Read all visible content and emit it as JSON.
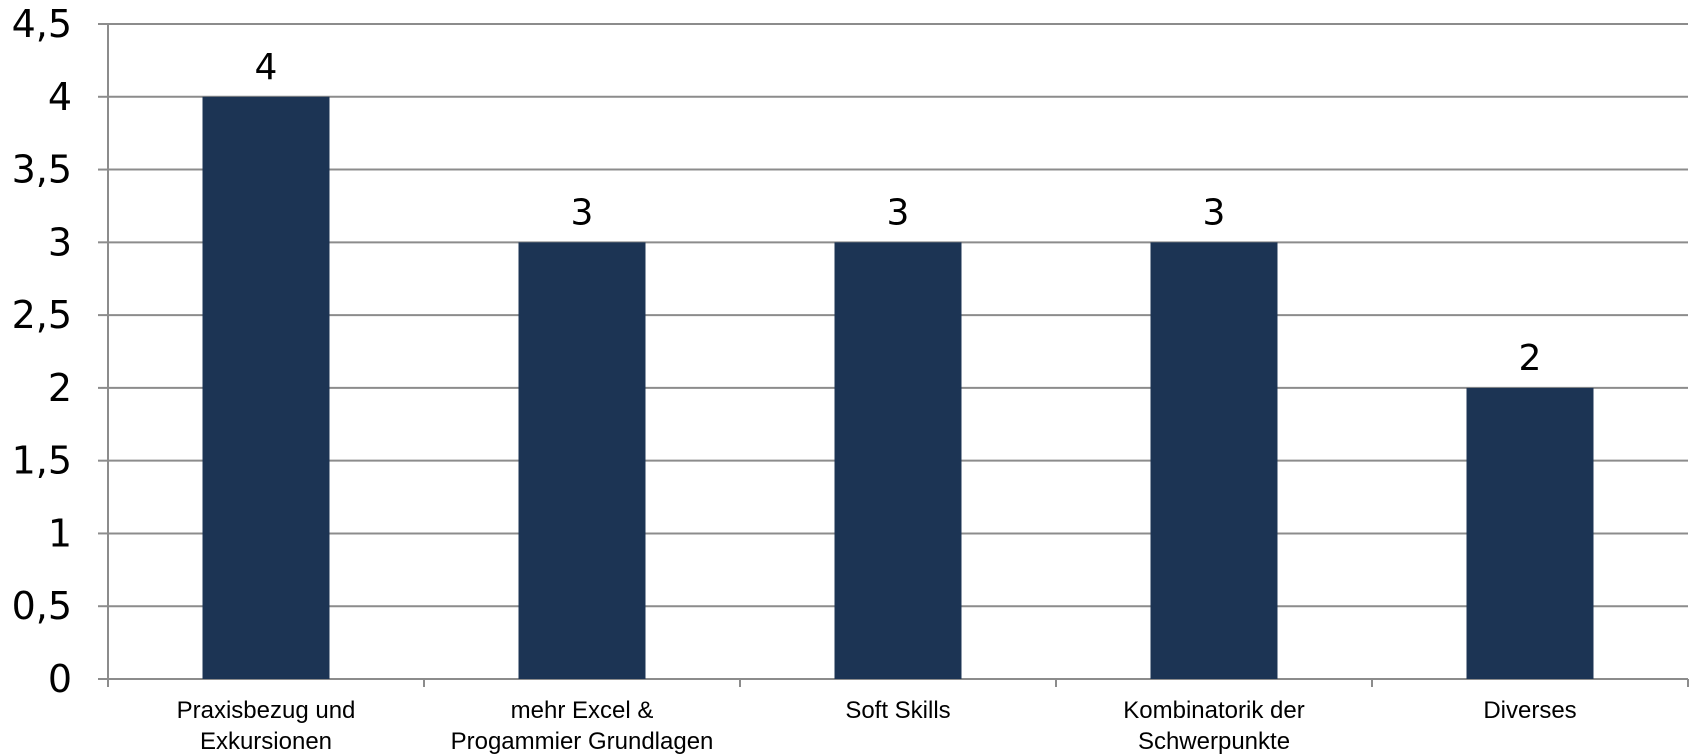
{
  "chart_data": {
    "type": "bar",
    "categories": [
      [
        "Praxisbezug und",
        "Exkursionen"
      ],
      [
        "mehr Excel &",
        "Progammier Grundlagen"
      ],
      [
        "Soft Skills"
      ],
      [
        "Kombinatorik der",
        "Schwerpunkte"
      ],
      [
        "Diverses"
      ]
    ],
    "values": [
      4,
      3,
      3,
      3,
      2
    ],
    "data_labels": [
      "4",
      "3",
      "3",
      "3",
      "2"
    ],
    "yticks": [
      "0",
      "0,5",
      "1",
      "1,5",
      "2",
      "2,5",
      "3",
      "3,5",
      "4",
      "4,5"
    ],
    "ylim": [
      0,
      4.5
    ],
    "grid": true,
    "legend": "none",
    "title": "",
    "xlabel": "",
    "ylabel": "",
    "colors": {
      "bar": "#1c3454",
      "grid": "#8c8c8c"
    }
  }
}
